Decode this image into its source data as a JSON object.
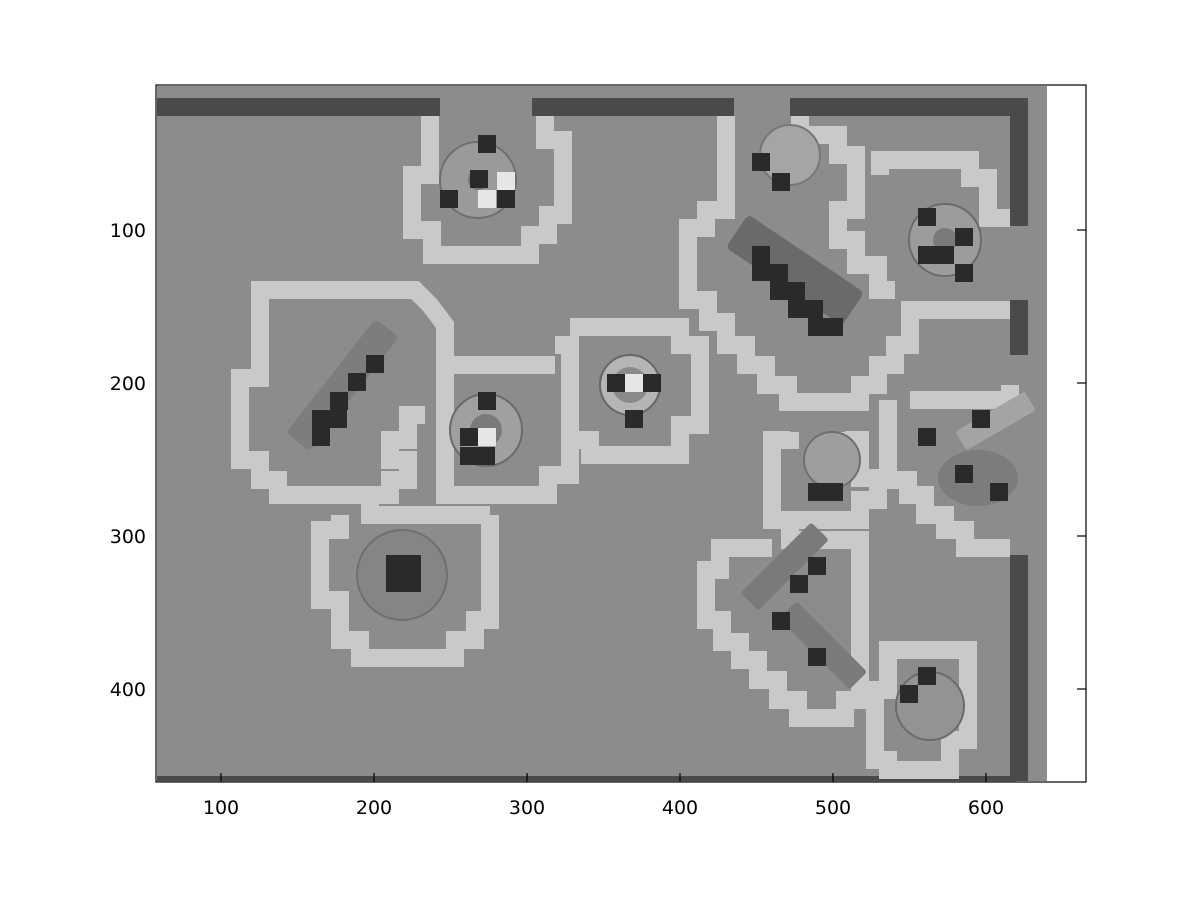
{
  "axes": {
    "x_ticks": [
      100,
      200,
      300,
      400,
      500,
      600
    ],
    "y_ticks": [
      100,
      200,
      300,
      400
    ],
    "xlim": [
      57,
      665
    ],
    "ylim": [
      0,
      458
    ]
  },
  "image": {
    "description_colors": {
      "background": "#8a8a8a",
      "outline": "#c8c8c8",
      "dark_cell": "#2a2a2a",
      "wall": "#4a4a4a"
    }
  }
}
